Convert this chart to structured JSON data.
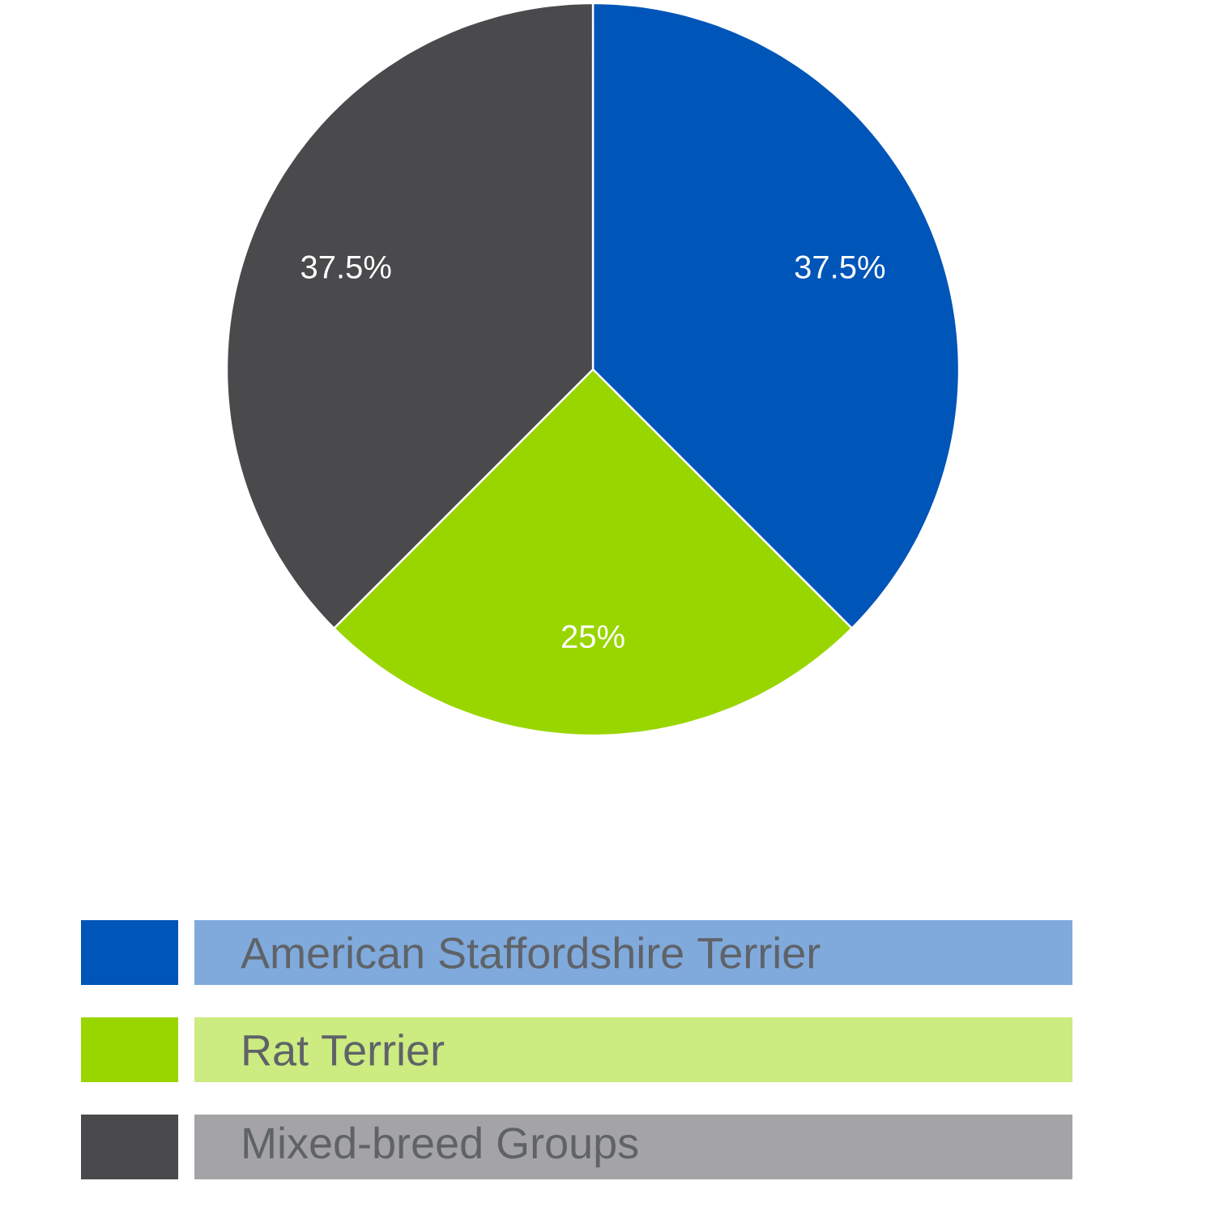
{
  "chart_data": {
    "type": "pie",
    "categories": [
      "American Staffordshire Terrier",
      "Rat Terrier",
      "Mixed-breed Groups"
    ],
    "values": [
      37.5,
      25,
      37.5
    ],
    "colors": [
      "#0055b8",
      "#99d600",
      "#4a4a4d"
    ],
    "value_labels": [
      "37.5%",
      "25%",
      "37.5%"
    ],
    "legend": "bottom"
  }
}
